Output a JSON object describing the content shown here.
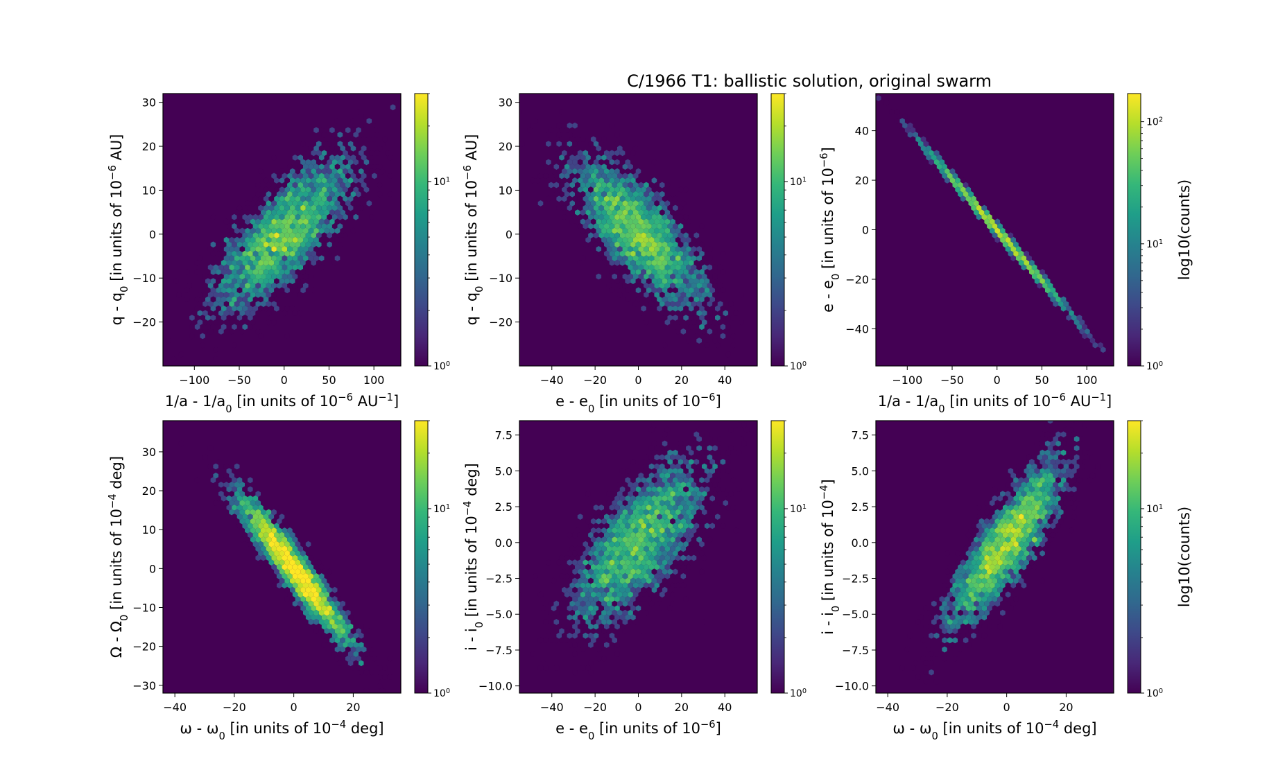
{
  "figure": {
    "title": "C/1966 T1:  ballistic solution, original swarm"
  },
  "colors": {
    "background": "#ffffff",
    "plot_bg": "#440154",
    "colormap": [
      "#440154",
      "#482878",
      "#3e4989",
      "#31688e",
      "#26828e",
      "#1f9e89",
      "#35b779",
      "#6ece58",
      "#b5de2b",
      "#fde725"
    ]
  },
  "chart_data": [
    {
      "type": "heatmap",
      "subtype": "hexbin",
      "xlabel": "1/a - 1/a0 [in units of 10^-6 AU^-1]",
      "ylabel": "q - q0 [in units of 10^-6 AU]",
      "xlim": [
        -135,
        130
      ],
      "ylim": [
        -30,
        32
      ],
      "xticks": [
        -100,
        -50,
        0,
        50,
        100
      ],
      "yticks": [
        -20,
        -10,
        0,
        10,
        20,
        30
      ],
      "distribution": {
        "mean": [
          0,
          0
        ],
        "sd": [
          40,
          9
        ],
        "corr": 0.75,
        "n": 3500
      },
      "colorbar": {
        "scale": "log",
        "vmin": 1,
        "vmax": 30,
        "ticks": [
          "10^0",
          "10^1"
        ],
        "label": ""
      }
    },
    {
      "type": "heatmap",
      "subtype": "hexbin",
      "xlabel": "e - e0 [in units of 10^-6]",
      "ylabel": "q - q0 [in units of 10^-6 AU]",
      "xlim": [
        -55,
        55
      ],
      "ylim": [
        -30,
        32
      ],
      "xticks": [
        -40,
        -20,
        0,
        20,
        40
      ],
      "yticks": [
        -20,
        -10,
        0,
        10,
        20,
        30
      ],
      "distribution": {
        "mean": [
          0,
          0
        ],
        "sd": [
          16,
          9
        ],
        "corr": -0.75,
        "n": 3500
      },
      "colorbar": {
        "scale": "log",
        "vmin": 1,
        "vmax": 30,
        "ticks": [
          "10^0",
          "10^1"
        ],
        "label": ""
      }
    },
    {
      "type": "heatmap",
      "subtype": "hexbin",
      "xlabel": "1/a - 1/a0 [in units of 10^-6 AU^-1]",
      "ylabel": "e - e0 [in units of 10^-6]",
      "xlim": [
        -135,
        130
      ],
      "ylim": [
        -55,
        55
      ],
      "xticks": [
        -100,
        -50,
        0,
        50,
        100
      ],
      "yticks": [
        -40,
        -20,
        0,
        20,
        40
      ],
      "distribution": {
        "mean": [
          0,
          0
        ],
        "sd": [
          40,
          16.6
        ],
        "corr": -0.998,
        "n": 3500
      },
      "colorbar": {
        "scale": "log",
        "vmin": 1,
        "vmax": 170,
        "ticks": [
          "10^0",
          "10^1",
          "10^2"
        ],
        "label": "log10(counts)"
      }
    },
    {
      "type": "heatmap",
      "subtype": "hexbin",
      "xlabel": "ω - ω0 [in units of 10^-4 deg]",
      "ylabel": "Ω - Ω0 [in units of 10^-4 deg]",
      "xlim": [
        -44,
        36
      ],
      "ylim": [
        -32,
        38
      ],
      "xticks": [
        -40,
        -20,
        0,
        20
      ],
      "yticks": [
        -30,
        -20,
        -10,
        0,
        10,
        20,
        30
      ],
      "distribution": {
        "mean": [
          0,
          0
        ],
        "sd": [
          10,
          10
        ],
        "corr": -0.95,
        "n": 3500
      },
      "colorbar": {
        "scale": "log",
        "vmin": 1,
        "vmax": 30,
        "ticks": [
          "10^0",
          "10^1"
        ],
        "label": ""
      }
    },
    {
      "type": "heatmap",
      "subtype": "hexbin",
      "xlabel": "e - e0 [in units of 10^-6]",
      "ylabel": "i - i0 [in units of 10^-4 deg]",
      "xlim": [
        -55,
        55
      ],
      "ylim": [
        -10.5,
        8.5
      ],
      "xticks": [
        -40,
        -20,
        0,
        20,
        40
      ],
      "yticks": [
        -10.0,
        -7.5,
        -5.0,
        -2.5,
        0.0,
        2.5,
        5.0,
        7.5
      ],
      "distribution": {
        "mean": [
          0,
          0
        ],
        "sd": [
          16,
          3
        ],
        "corr": 0.7,
        "n": 3500
      },
      "colorbar": {
        "scale": "log",
        "vmin": 1,
        "vmax": 30,
        "ticks": [
          "10^0",
          "10^1"
        ],
        "label": "i - i0 [in units of 10^-4]"
      }
    },
    {
      "type": "heatmap",
      "subtype": "hexbin",
      "xlabel": "ω - ω0 [in units of 10^-4 deg]",
      "ylabel": "",
      "xlim": [
        -44,
        36
      ],
      "ylim": [
        -10.5,
        8.5
      ],
      "xticks": [
        -40,
        -20,
        0,
        20
      ],
      "yticks": [
        -10.0,
        -7.5,
        -5.0,
        -2.5,
        0.0,
        2.5,
        5.0,
        7.5
      ],
      "distribution": {
        "mean": [
          0,
          0
        ],
        "sd": [
          10,
          3
        ],
        "corr": 0.85,
        "n": 3500
      },
      "colorbar": {
        "scale": "log",
        "vmin": 1,
        "vmax": 30,
        "ticks": [
          "10^0",
          "10^1"
        ],
        "label": "log10(counts)"
      }
    }
  ]
}
